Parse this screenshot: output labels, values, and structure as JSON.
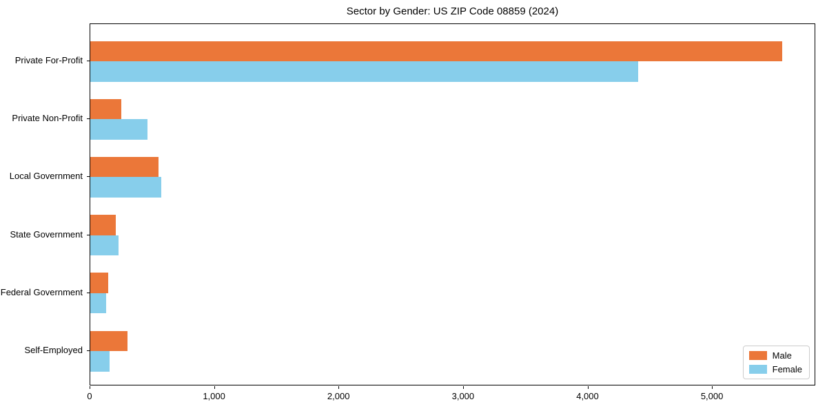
{
  "chart_data": {
    "type": "bar",
    "orientation": "horizontal",
    "title": "Sector by Gender: US ZIP Code 08859 (2024)",
    "categories": [
      "Private For-Profit",
      "Private Non-Profit",
      "Local Government",
      "State Government",
      "Federal Government",
      "Self-Employed"
    ],
    "series": [
      {
        "name": "Male",
        "color": "#EB7739",
        "values": [
          5560,
          250,
          550,
          205,
          145,
          300
        ]
      },
      {
        "name": "Female",
        "color": "#87CEEB",
        "values": [
          4400,
          460,
          570,
          225,
          125,
          155
        ]
      }
    ],
    "xlabel": "",
    "ylabel": "",
    "xlim": [
      0,
      5830
    ],
    "xticks": [
      0,
      1000,
      2000,
      3000,
      4000,
      5000
    ],
    "xtick_labels": [
      "0",
      "1,000",
      "2,000",
      "3,000",
      "4,000",
      "5,000"
    ],
    "grid": false,
    "legend": {
      "position": "lower right"
    }
  }
}
